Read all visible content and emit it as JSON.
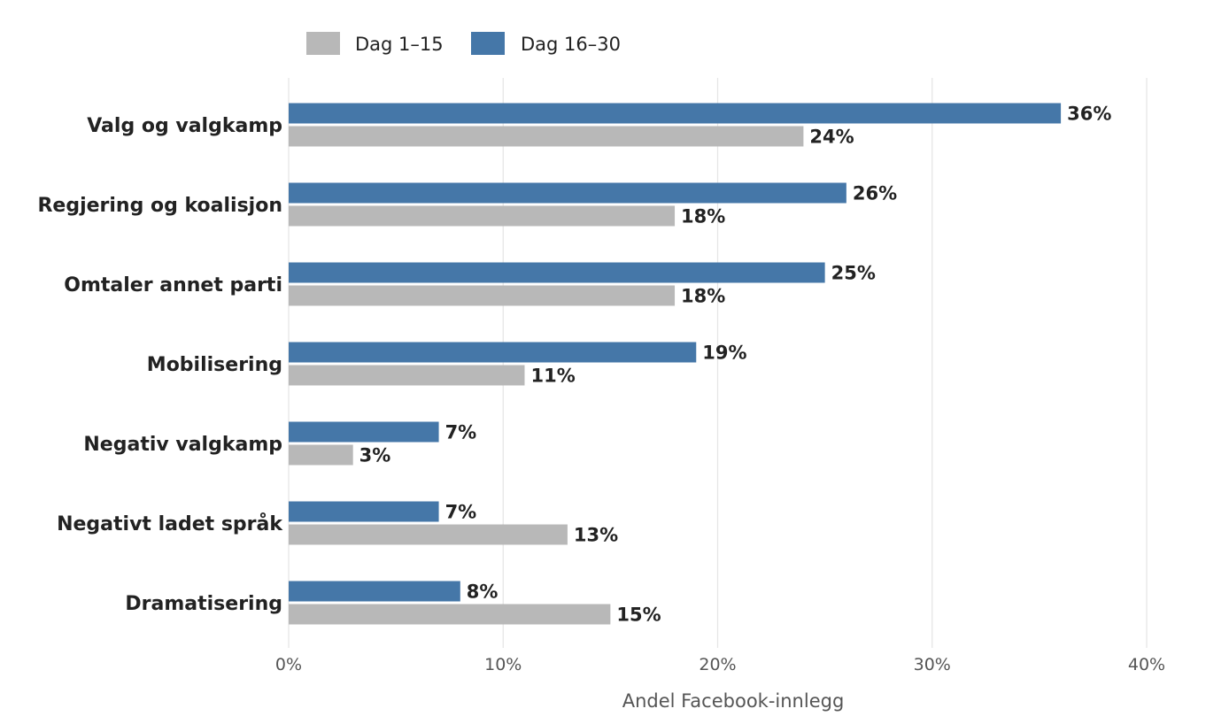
{
  "chart_data": {
    "type": "bar",
    "orientation": "horizontal",
    "categories": [
      "Valg og valgkamp",
      "Regjering og koalisjon",
      "Omtaler annet parti",
      "Mobilisering",
      "Negativ valgkamp",
      "Negativt ladet språk",
      "Dramatisering"
    ],
    "series": [
      {
        "name": "Dag 16–30",
        "color": "#4577a8",
        "values": [
          36,
          26,
          25,
          19,
          7,
          7,
          8
        ],
        "labels": [
          "36%",
          "26%",
          "25%",
          "19%",
          "7%",
          "7%",
          "8%"
        ]
      },
      {
        "name": "Dag 1–15",
        "color": "#b8b8b8",
        "values": [
          24,
          18,
          18,
          11,
          3,
          13,
          15
        ],
        "labels": [
          "24%",
          "18%",
          "18%",
          "11%",
          "3%",
          "13%",
          "15%"
        ]
      }
    ],
    "legend": {
      "placement": "top",
      "order": [
        "Dag 1–15",
        "Dag 16–30"
      ]
    },
    "xlim": [
      0,
      40
    ],
    "xticks": [
      0,
      10,
      20,
      30,
      40
    ],
    "xtick_labels": [
      "0%",
      "10%",
      "20%",
      "30%",
      "40%"
    ],
    "xlabel": "Andel Facebook-innlegg",
    "ylabel": "",
    "title": "",
    "grid": {
      "x": true,
      "y": false,
      "color": "#e6e6e6"
    }
  }
}
